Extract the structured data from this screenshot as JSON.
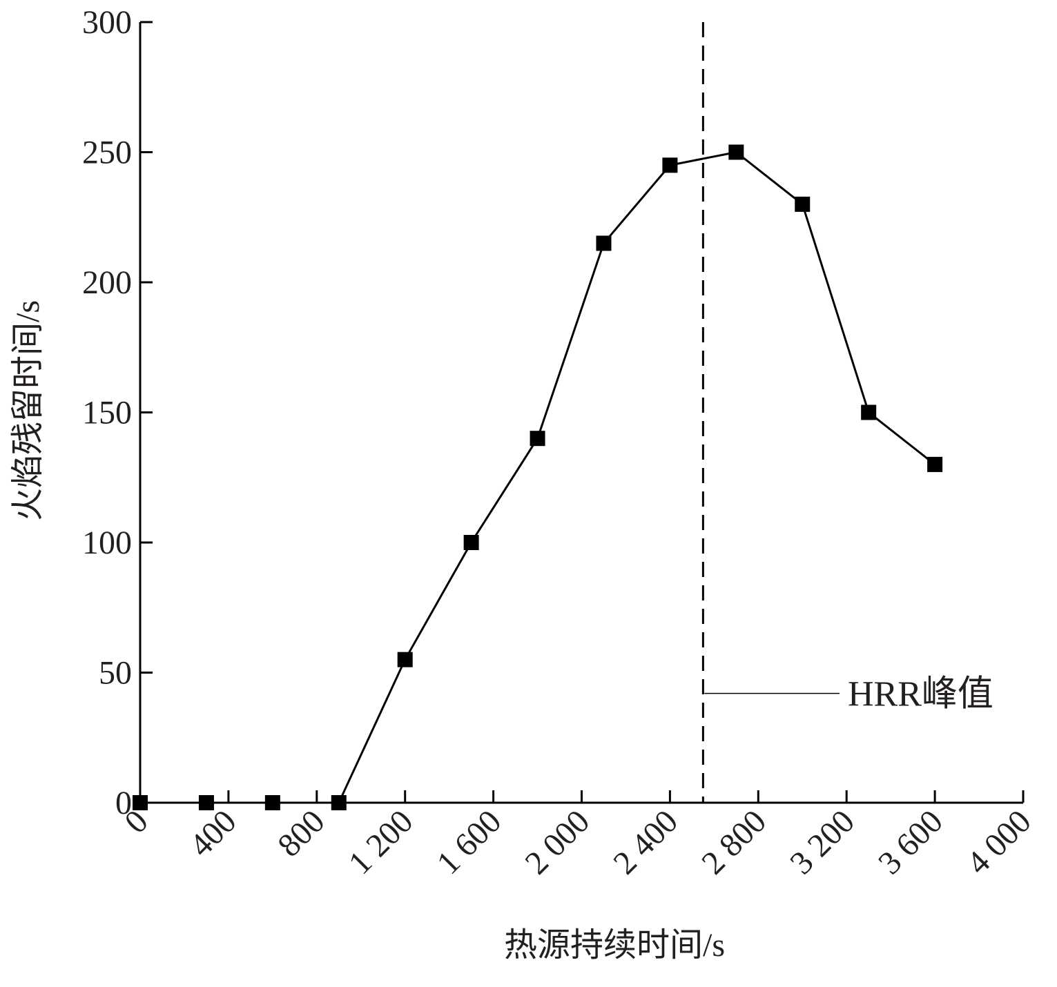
{
  "chart_data": {
    "type": "line",
    "x_label": "热源持续时间/s",
    "y_label": "火焰残留时间/s",
    "x": [
      0,
      300,
      600,
      900,
      1200,
      1500,
      1800,
      2100,
      2400,
      2700,
      3000,
      3300,
      3600
    ],
    "series": [
      {
        "color": "#000000",
        "values": [
          0,
          0,
          0,
          0,
          55,
          100,
          140,
          215,
          245,
          250,
          230,
          150,
          130
        ]
      }
    ],
    "xlim": [
      0,
      4000
    ],
    "xticks": [
      0,
      400,
      800,
      {
        "value": 1200,
        "label": "1 200"
      },
      {
        "value": 1600,
        "label": "1 600"
      },
      {
        "value": 2000,
        "label": "2 000"
      },
      {
        "value": 2400,
        "label": "2 400"
      },
      {
        "value": 2800,
        "label": "2 800"
      },
      {
        "value": 3200,
        "label": "3 200"
      },
      {
        "value": 3600,
        "label": "3 600"
      },
      {
        "value": 4000,
        "label": "4 000"
      }
    ],
    "ylim": [
      0,
      300
    ],
    "yticks": [
      0,
      50,
      100,
      150,
      200,
      250,
      300
    ],
    "vline": {
      "x": 2550,
      "label": "HRR峰值",
      "label_y": 42
    }
  }
}
